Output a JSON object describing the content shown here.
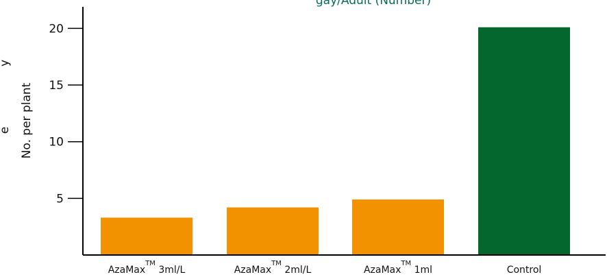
{
  "chart_data": {
    "type": "bar",
    "title_fragment": "gay/Adult (Number)",
    "ylabel": "No. per plant",
    "side_label_fragments": [
      "y",
      "e"
    ],
    "categories": [
      {
        "name": "AzaMax",
        "mark": "TM",
        "suffix": "3ml/L"
      },
      {
        "name": "AzaMax",
        "mark": "TM",
        "suffix": "2ml/L"
      },
      {
        "name": "AzaMax",
        "mark": "TM",
        "suffix": "1ml"
      },
      {
        "name": "Control",
        "mark": "",
        "suffix": ""
      }
    ],
    "values": [
      3.3,
      4.2,
      4.9,
      20.1
    ],
    "bar_colors": [
      "#f39200",
      "#f39200",
      "#f39200",
      "#04672e"
    ],
    "yticks": [
      5,
      10,
      15,
      20
    ],
    "ylim": [
      0,
      21.9
    ],
    "grid": false,
    "legend": "none"
  }
}
